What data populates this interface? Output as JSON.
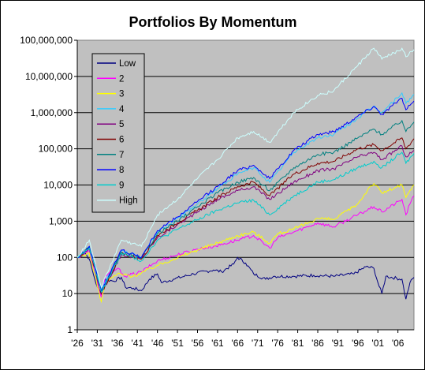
{
  "chart_data": {
    "type": "line",
    "title": "Portfolios By Momentum",
    "xlabel": "",
    "ylabel": "",
    "y_scale": "log",
    "ylim": [
      1,
      100000000
    ],
    "xlim": [
      1926,
      2010
    ],
    "grid": "horizontal major gridlines",
    "plot_background": "#C0C0C0",
    "legend_position": "top-left inside plot",
    "y_ticks": [
      {
        "value": 1,
        "label": "1"
      },
      {
        "value": 10,
        "label": "10"
      },
      {
        "value": 100,
        "label": "100"
      },
      {
        "value": 1000,
        "label": "1,000"
      },
      {
        "value": 10000,
        "label": "10,000"
      },
      {
        "value": 100000,
        "label": "100,000"
      },
      {
        "value": 1000000,
        "label": "1,000,000"
      },
      {
        "value": 10000000,
        "label": "10,000,000"
      },
      {
        "value": 100000000,
        "label": "100,000,000"
      }
    ],
    "x_ticks": [
      {
        "value": 1926,
        "label": "'26"
      },
      {
        "value": 1931,
        "label": "'31"
      },
      {
        "value": 1936,
        "label": "'36"
      },
      {
        "value": 1941,
        "label": "'41"
      },
      {
        "value": 1946,
        "label": "'46"
      },
      {
        "value": 1951,
        "label": "'51"
      },
      {
        "value": 1956,
        "label": "'56"
      },
      {
        "value": 1961,
        "label": "'61"
      },
      {
        "value": 1966,
        "label": "'66"
      },
      {
        "value": 1971,
        "label": "'71"
      },
      {
        "value": 1976,
        "label": "'76"
      },
      {
        "value": 1981,
        "label": "'81"
      },
      {
        "value": 1986,
        "label": "'86"
      },
      {
        "value": 1991,
        "label": "'91"
      },
      {
        "value": 1996,
        "label": "'96"
      },
      {
        "value": 2001,
        "label": "'01"
      },
      {
        "value": 2006,
        "label": "'06"
      }
    ],
    "series": [
      {
        "name": "Low",
        "color": "#000080",
        "points": [
          [
            1926,
            100
          ],
          [
            1928,
            130
          ],
          [
            1929,
            90
          ],
          [
            1930,
            35
          ],
          [
            1931,
            15
          ],
          [
            1932,
            10
          ],
          [
            1933,
            25
          ],
          [
            1935,
            22
          ],
          [
            1937,
            28
          ],
          [
            1938,
            15
          ],
          [
            1940,
            14
          ],
          [
            1942,
            12
          ],
          [
            1944,
            25
          ],
          [
            1946,
            35
          ],
          [
            1947,
            20
          ],
          [
            1950,
            25
          ],
          [
            1955,
            35
          ],
          [
            1960,
            45
          ],
          [
            1962,
            40
          ],
          [
            1965,
            65
          ],
          [
            1966,
            100
          ],
          [
            1968,
            70
          ],
          [
            1970,
            35
          ],
          [
            1973,
            25
          ],
          [
            1975,
            30
          ],
          [
            1980,
            30
          ],
          [
            1985,
            32
          ],
          [
            1990,
            30
          ],
          [
            1995,
            35
          ],
          [
            1998,
            55
          ],
          [
            2000,
            50
          ],
          [
            2001,
            20
          ],
          [
            2002,
            10
          ],
          [
            2003,
            30
          ],
          [
            2007,
            25
          ],
          [
            2008,
            7
          ],
          [
            2009,
            20
          ],
          [
            2010,
            28
          ]
        ]
      },
      {
        "name": "2",
        "color": "#FF00FF",
        "points": [
          [
            1926,
            100
          ],
          [
            1929,
            150
          ],
          [
            1932,
            8
          ],
          [
            1933,
            30
          ],
          [
            1936,
            50
          ],
          [
            1938,
            30
          ],
          [
            1942,
            40
          ],
          [
            1946,
            80
          ],
          [
            1950,
            110
          ],
          [
            1956,
            170
          ],
          [
            1960,
            200
          ],
          [
            1966,
            300
          ],
          [
            1970,
            400
          ],
          [
            1974,
            180
          ],
          [
            1976,
            350
          ],
          [
            1980,
            500
          ],
          [
            1986,
            900
          ],
          [
            1990,
            700
          ],
          [
            1996,
            1500
          ],
          [
            2000,
            2500
          ],
          [
            2002,
            1800
          ],
          [
            2007,
            4000
          ],
          [
            2008,
            1500
          ],
          [
            2009,
            3000
          ],
          [
            2010,
            5000
          ]
        ]
      },
      {
        "name": "3",
        "color": "#FFFF00",
        "points": [
          [
            1926,
            100
          ],
          [
            1929,
            130
          ],
          [
            1932,
            6
          ],
          [
            1933,
            20
          ],
          [
            1936,
            35
          ],
          [
            1940,
            30
          ],
          [
            1946,
            60
          ],
          [
            1950,
            90
          ],
          [
            1956,
            160
          ],
          [
            1961,
            250
          ],
          [
            1966,
            400
          ],
          [
            1970,
            500
          ],
          [
            1974,
            250
          ],
          [
            1976,
            450
          ],
          [
            1980,
            600
          ],
          [
            1986,
            1200
          ],
          [
            1990,
            1100
          ],
          [
            1996,
            3000
          ],
          [
            1999,
            9000
          ],
          [
            2000,
            11000
          ],
          [
            2002,
            6000
          ],
          [
            2007,
            10000
          ],
          [
            2008,
            4500
          ],
          [
            2010,
            10000
          ]
        ]
      },
      {
        "name": "4",
        "color": "#33CCFF",
        "points": [
          [
            1926,
            100
          ],
          [
            1929,
            200
          ],
          [
            1932,
            12
          ],
          [
            1937,
            150
          ],
          [
            1942,
            100
          ],
          [
            1946,
            500
          ],
          [
            1951,
            1200
          ],
          [
            1956,
            3000
          ],
          [
            1961,
            8000
          ],
          [
            1966,
            20000
          ],
          [
            1970,
            30000
          ],
          [
            1974,
            12000
          ],
          [
            1980,
            80000
          ],
          [
            1986,
            200000
          ],
          [
            1990,
            250000
          ],
          [
            1996,
            700000
          ],
          [
            2000,
            1500000
          ],
          [
            2002,
            1000000
          ],
          [
            2007,
            3500000
          ],
          [
            2008,
            1800000
          ],
          [
            2010,
            3200000
          ]
        ]
      },
      {
        "name": "5",
        "color": "#800080",
        "points": [
          [
            1926,
            100
          ],
          [
            1929,
            170
          ],
          [
            1932,
            10
          ],
          [
            1937,
            120
          ],
          [
            1942,
            90
          ],
          [
            1946,
            350
          ],
          [
            1951,
            800
          ],
          [
            1956,
            1800
          ],
          [
            1961,
            4000
          ],
          [
            1966,
            7000
          ],
          [
            1970,
            9000
          ],
          [
            1974,
            4000
          ],
          [
            1980,
            12000
          ],
          [
            1986,
            25000
          ],
          [
            1990,
            28000
          ],
          [
            1996,
            60000
          ],
          [
            2000,
            80000
          ],
          [
            2002,
            50000
          ],
          [
            2007,
            120000
          ],
          [
            2008,
            60000
          ],
          [
            2010,
            90000
          ]
        ]
      },
      {
        "name": "6",
        "color": "#800000",
        "points": [
          [
            1926,
            100
          ],
          [
            1929,
            180
          ],
          [
            1932,
            10
          ],
          [
            1937,
            130
          ],
          [
            1942,
            90
          ],
          [
            1946,
            400
          ],
          [
            1951,
            900
          ],
          [
            1956,
            2000
          ],
          [
            1961,
            4500
          ],
          [
            1966,
            9000
          ],
          [
            1970,
            12000
          ],
          [
            1974,
            5000
          ],
          [
            1980,
            20000
          ],
          [
            1986,
            40000
          ],
          [
            1990,
            45000
          ],
          [
            1996,
            100000
          ],
          [
            2000,
            130000
          ],
          [
            2002,
            90000
          ],
          [
            2007,
            200000
          ],
          [
            2008,
            100000
          ],
          [
            2010,
            190000
          ]
        ]
      },
      {
        "name": "7",
        "color": "#008080",
        "points": [
          [
            1926,
            100
          ],
          [
            1929,
            190
          ],
          [
            1932,
            11
          ],
          [
            1937,
            140
          ],
          [
            1942,
            95
          ],
          [
            1946,
            450
          ],
          [
            1951,
            1000
          ],
          [
            1956,
            2500
          ],
          [
            1961,
            6000
          ],
          [
            1966,
            12000
          ],
          [
            1970,
            16000
          ],
          [
            1974,
            7000
          ],
          [
            1980,
            30000
          ],
          [
            1986,
            70000
          ],
          [
            1990,
            80000
          ],
          [
            1996,
            200000
          ],
          [
            2000,
            350000
          ],
          [
            2002,
            250000
          ],
          [
            2007,
            600000
          ],
          [
            2008,
            300000
          ],
          [
            2010,
            550000
          ]
        ]
      },
      {
        "name": "8",
        "color": "#0000FF",
        "points": [
          [
            1926,
            100
          ],
          [
            1929,
            200
          ],
          [
            1932,
            12
          ],
          [
            1937,
            160
          ],
          [
            1942,
            100
          ],
          [
            1946,
            550
          ],
          [
            1951,
            1300
          ],
          [
            1956,
            3500
          ],
          [
            1961,
            9000
          ],
          [
            1966,
            25000
          ],
          [
            1970,
            35000
          ],
          [
            1974,
            15000
          ],
          [
            1980,
            90000
          ],
          [
            1986,
            250000
          ],
          [
            1990,
            300000
          ],
          [
            1996,
            800000
          ],
          [
            2000,
            1500000
          ],
          [
            2002,
            900000
          ],
          [
            2007,
            2500000
          ],
          [
            2008,
            1200000
          ],
          [
            2010,
            2100000
          ]
        ]
      },
      {
        "name": "9",
        "color": "#00CCCC",
        "points": [
          [
            1926,
            100
          ],
          [
            1929,
            180
          ],
          [
            1932,
            11
          ],
          [
            1937,
            130
          ],
          [
            1942,
            80
          ],
          [
            1946,
            300
          ],
          [
            1951,
            600
          ],
          [
            1956,
            1100
          ],
          [
            1961,
            2000
          ],
          [
            1966,
            3200
          ],
          [
            1970,
            3800
          ],
          [
            1974,
            1500
          ],
          [
            1980,
            5000
          ],
          [
            1986,
            12000
          ],
          [
            1990,
            14000
          ],
          [
            1996,
            30000
          ],
          [
            2000,
            45000
          ],
          [
            2002,
            30000
          ],
          [
            2007,
            80000
          ],
          [
            2008,
            40000
          ],
          [
            2010,
            75000
          ]
        ]
      },
      {
        "name": "High",
        "color": "#CCFFFF",
        "points": [
          [
            1926,
            100
          ],
          [
            1929,
            300
          ],
          [
            1932,
            15
          ],
          [
            1937,
            300
          ],
          [
            1942,
            200
          ],
          [
            1946,
            1500
          ],
          [
            1951,
            4000
          ],
          [
            1956,
            15000
          ],
          [
            1961,
            50000
          ],
          [
            1966,
            200000
          ],
          [
            1970,
            300000
          ],
          [
            1974,
            150000
          ],
          [
            1980,
            1000000
          ],
          [
            1986,
            3000000
          ],
          [
            1990,
            4000000
          ],
          [
            1996,
            20000000
          ],
          [
            2000,
            60000000
          ],
          [
            2002,
            30000000
          ],
          [
            2007,
            60000000
          ],
          [
            2008,
            35000000
          ],
          [
            2010,
            55000000
          ]
        ]
      }
    ]
  }
}
